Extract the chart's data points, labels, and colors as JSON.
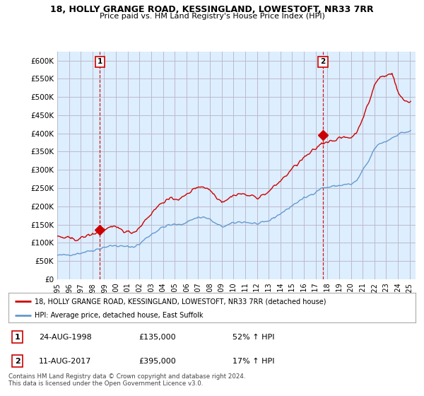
{
  "title": "18, HOLLY GRANGE ROAD, KESSINGLAND, LOWESTOFT, NR33 7RR",
  "subtitle": "Price paid vs. HM Land Registry's House Price Index (HPI)",
  "legend_line1": "18, HOLLY GRANGE ROAD, KESSINGLAND, LOWESTOFT, NR33 7RR (detached house)",
  "legend_line2": "HPI: Average price, detached house, East Suffolk",
  "annotation1_date": "24-AUG-1998",
  "annotation1_price": "£135,000",
  "annotation1_hpi": "52% ↑ HPI",
  "annotation2_date": "11-AUG-2017",
  "annotation2_price": "£395,000",
  "annotation2_hpi": "17% ↑ HPI",
  "footer": "Contains HM Land Registry data © Crown copyright and database right 2024.\nThis data is licensed under the Open Government Licence v3.0.",
  "ylim": [
    0,
    625000
  ],
  "yticks": [
    0,
    50000,
    100000,
    150000,
    200000,
    250000,
    300000,
    350000,
    400000,
    450000,
    500000,
    550000,
    600000
  ],
  "ytick_labels": [
    "£0",
    "£50K",
    "£100K",
    "£150K",
    "£200K",
    "£250K",
    "£300K",
    "£350K",
    "£400K",
    "£450K",
    "£500K",
    "£550K",
    "£600K"
  ],
  "red_color": "#cc0000",
  "blue_color": "#6699cc",
  "bg_fill": "#ddeeff",
  "background_color": "#ffffff",
  "grid_color": "#bbbbcc",
  "sale1_x": 1998.62,
  "sale1_y": 135000,
  "sale2_x": 2017.62,
  "sale2_y": 395000,
  "xlim_left": 1995.0,
  "xlim_right": 2025.5,
  "xtick_years": [
    1995,
    1996,
    1997,
    1998,
    1999,
    2000,
    2001,
    2002,
    2003,
    2004,
    2005,
    2006,
    2007,
    2008,
    2009,
    2010,
    2011,
    2012,
    2013,
    2014,
    2015,
    2016,
    2017,
    2018,
    2019,
    2020,
    2021,
    2022,
    2023,
    2024,
    2025
  ]
}
